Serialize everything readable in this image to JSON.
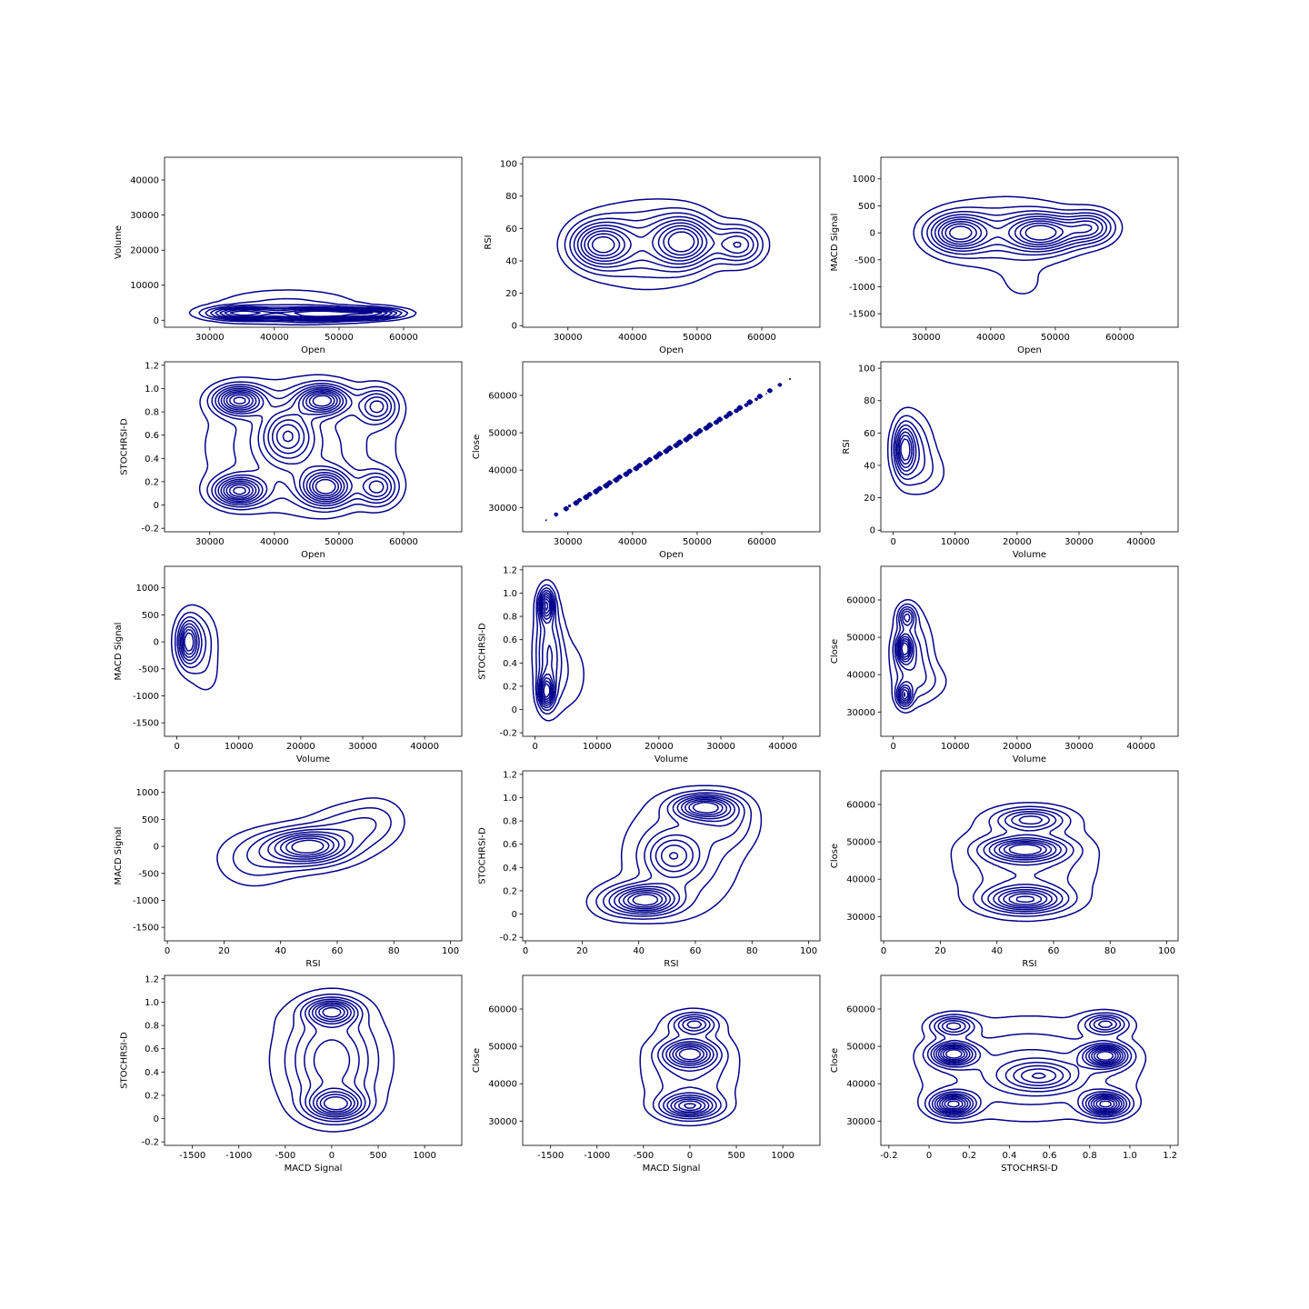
{
  "figure": {
    "line_color": "#00008b",
    "background": "#ffffff"
  },
  "chart_data": [
    {
      "type": "contour",
      "xlabel": "Open",
      "ylabel": "Volume",
      "xlim": [
        23000,
        69000
      ],
      "ylim": [
        -2000,
        46500
      ],
      "xticks": [
        30000,
        40000,
        50000,
        60000
      ],
      "yticks": [
        0,
        10000,
        20000,
        30000,
        40000
      ],
      "density_centers": [
        {
          "x": 34500,
          "y": 2000,
          "weight": 0.9,
          "spread": [
            3500,
            1200
          ]
        },
        {
          "x": 47500,
          "y": 1800,
          "weight": 1.0,
          "spread": [
            5500,
            1200
          ]
        },
        {
          "x": 56000,
          "y": 2000,
          "weight": 0.6,
          "spread": [
            3000,
            1000
          ]
        },
        {
          "x": 42000,
          "y": 4000,
          "weight": 0.3,
          "spread": [
            8000,
            3500
          ]
        }
      ],
      "levels": 8
    },
    {
      "type": "contour",
      "xlabel": "Open",
      "ylabel": "RSI",
      "xlim": [
        23000,
        69000
      ],
      "ylim": [
        -1,
        104
      ],
      "xticks": [
        30000,
        40000,
        50000,
        60000
      ],
      "yticks": [
        0,
        20,
        40,
        60,
        80,
        100
      ],
      "density_centers": [
        {
          "x": 35000,
          "y": 50,
          "weight": 1.0,
          "spread": [
            3000,
            9
          ]
        },
        {
          "x": 48000,
          "y": 52,
          "weight": 1.0,
          "spread": [
            3000,
            10
          ]
        },
        {
          "x": 56500,
          "y": 50,
          "weight": 0.7,
          "spread": [
            2500,
            8
          ]
        },
        {
          "x": 42000,
          "y": 50,
          "weight": 0.45,
          "spread": [
            6000,
            17
          ]
        }
      ],
      "levels": 9
    },
    {
      "type": "contour",
      "xlabel": "Open",
      "ylabel": "MACD Signal",
      "xlim": [
        23000,
        69000
      ],
      "ylim": [
        -1750,
        1400
      ],
      "xticks": [
        30000,
        40000,
        50000,
        60000
      ],
      "yticks": [
        -1500,
        -1000,
        -500,
        0,
        500,
        1000
      ],
      "density_centers": [
        {
          "x": 35000,
          "y": 0,
          "weight": 1.0,
          "spread": [
            3000,
            220
          ]
        },
        {
          "x": 48000,
          "y": 0,
          "weight": 1.0,
          "spread": [
            3500,
            220
          ]
        },
        {
          "x": 55500,
          "y": 100,
          "weight": 0.7,
          "spread": [
            2500,
            200
          ]
        },
        {
          "x": 42000,
          "y": 0,
          "weight": 0.35,
          "spread": [
            7000,
            450
          ]
        },
        {
          "x": 45000,
          "y": -1000,
          "weight": 0.12,
          "spread": [
            3000,
            250
          ]
        }
      ],
      "levels": 9
    },
    {
      "type": "contour",
      "xlabel": "Open",
      "ylabel": "STOCHRSI-D",
      "xlim": [
        23000,
        69000
      ],
      "ylim": [
        -0.23,
        1.23
      ],
      "xticks": [
        30000,
        40000,
        50000,
        60000
      ],
      "yticks": [
        -0.2,
        0,
        0.2,
        0.4,
        0.6,
        0.8,
        1.0,
        1.2
      ],
      "density_centers": [
        {
          "x": 34500,
          "y": 0.9,
          "weight": 1.0,
          "spread": [
            2500,
            0.08
          ]
        },
        {
          "x": 47500,
          "y": 0.9,
          "weight": 1.0,
          "spread": [
            2500,
            0.08
          ]
        },
        {
          "x": 34500,
          "y": 0.12,
          "weight": 1.0,
          "spread": [
            2500,
            0.08
          ]
        },
        {
          "x": 48000,
          "y": 0.15,
          "weight": 1.0,
          "spread": [
            2500,
            0.1
          ]
        },
        {
          "x": 42000,
          "y": 0.6,
          "weight": 0.6,
          "spread": [
            2500,
            0.15
          ]
        },
        {
          "x": 56000,
          "y": 0.85,
          "weight": 0.6,
          "spread": [
            2000,
            0.1
          ]
        },
        {
          "x": 56000,
          "y": 0.15,
          "weight": 0.6,
          "spread": [
            2000,
            0.1
          ]
        },
        {
          "x": 44000,
          "y": 0.5,
          "weight": 0.4,
          "spread": [
            9000,
            0.35
          ]
        }
      ],
      "levels": 10
    },
    {
      "type": "contour",
      "xlabel": "Open",
      "ylabel": "Close",
      "xlim": [
        23000,
        69000
      ],
      "ylim": [
        23500,
        69000
      ],
      "xticks": [
        30000,
        40000,
        50000,
        60000
      ],
      "yticks": [
        30000,
        40000,
        50000,
        60000
      ],
      "density_centers": [
        {
          "x": 35000,
          "y": 35000,
          "weight": 1.0,
          "spread": [
            4000,
            4000
          ]
        },
        {
          "x": 47000,
          "y": 47000,
          "weight": 1.0,
          "spread": [
            4500,
            4500
          ]
        },
        {
          "x": 57000,
          "y": 57000,
          "weight": 0.6,
          "spread": [
            4000,
            4000
          ]
        }
      ],
      "correlation": 0.9995,
      "levels": 8
    },
    {
      "type": "contour",
      "xlabel": "Volume",
      "ylabel": "RSI",
      "xlim": [
        -2000,
        46000
      ],
      "ylim": [
        -1,
        104
      ],
      "xticks": [
        0,
        10000,
        20000,
        30000,
        40000
      ],
      "yticks": [
        0,
        20,
        40,
        60,
        80,
        100
      ],
      "density_centers": [
        {
          "x": 1800,
          "y": 50,
          "weight": 1.0,
          "spread": [
            1000,
            10
          ]
        },
        {
          "x": 3000,
          "y": 50,
          "weight": 0.6,
          "spread": [
            2200,
            15
          ]
        },
        {
          "x": 6000,
          "y": 35,
          "weight": 0.2,
          "spread": [
            2500,
            10
          ]
        }
      ],
      "levels": 8
    },
    {
      "type": "contour",
      "xlabel": "Volume",
      "ylabel": "MACD Signal",
      "xlim": [
        -2000,
        46000
      ],
      "ylim": [
        -1750,
        1400
      ],
      "xticks": [
        0,
        10000,
        20000,
        30000,
        40000
      ],
      "yticks": [
        -1500,
        -1000,
        -500,
        0,
        500,
        1000
      ],
      "density_centers": [
        {
          "x": 1800,
          "y": 0,
          "weight": 1.0,
          "spread": [
            1000,
            260
          ]
        },
        {
          "x": 3000,
          "y": 0,
          "weight": 0.6,
          "spread": [
            2200,
            400
          ]
        },
        {
          "x": 5000,
          "y": -700,
          "weight": 0.15,
          "spread": [
            1800,
            300
          ]
        }
      ],
      "levels": 8
    },
    {
      "type": "contour",
      "xlabel": "Volume",
      "ylabel": "STOCHRSI-D",
      "xlim": [
        -2000,
        46000
      ],
      "ylim": [
        -0.23,
        1.23
      ],
      "xticks": [
        0,
        10000,
        20000,
        30000,
        40000
      ],
      "yticks": [
        -0.2,
        0,
        0.2,
        0.4,
        0.6,
        0.8,
        1.0,
        1.2
      ],
      "density_centers": [
        {
          "x": 1800,
          "y": 0.9,
          "weight": 1.0,
          "spread": [
            800,
            0.09
          ]
        },
        {
          "x": 1800,
          "y": 0.15,
          "weight": 1.0,
          "spread": [
            800,
            0.09
          ]
        },
        {
          "x": 2200,
          "y": 0.5,
          "weight": 0.6,
          "spread": [
            1500,
            0.3
          ]
        },
        {
          "x": 5500,
          "y": 0.3,
          "weight": 0.2,
          "spread": [
            2500,
            0.25
          ]
        }
      ],
      "levels": 9
    },
    {
      "type": "contour",
      "xlabel": "Volume",
      "ylabel": "Close",
      "xlim": [
        -2000,
        46000
      ],
      "ylim": [
        23500,
        69000
      ],
      "xticks": [
        0,
        10000,
        20000,
        30000,
        40000
      ],
      "yticks": [
        30000,
        40000,
        50000,
        60000
      ],
      "density_centers": [
        {
          "x": 1800,
          "y": 47000,
          "weight": 1.0,
          "spread": [
            800,
            2500
          ]
        },
        {
          "x": 1800,
          "y": 34500,
          "weight": 0.9,
          "spread": [
            800,
            2000
          ]
        },
        {
          "x": 2200,
          "y": 55500,
          "weight": 0.7,
          "spread": [
            900,
            2000
          ]
        },
        {
          "x": 3000,
          "y": 45000,
          "weight": 0.5,
          "spread": [
            2200,
            8000
          ]
        },
        {
          "x": 6000,
          "y": 38000,
          "weight": 0.2,
          "spread": [
            2500,
            3500
          ]
        }
      ],
      "levels": 9
    },
    {
      "type": "contour",
      "xlabel": "RSI",
      "ylabel": "MACD Signal",
      "xlim": [
        -1,
        104
      ],
      "ylim": [
        -1750,
        1400
      ],
      "xticks": [
        0,
        20,
        40,
        60,
        80,
        100
      ],
      "yticks": [
        -1500,
        -1000,
        -500,
        0,
        500,
        1000
      ],
      "density_centers": [
        {
          "x": 50,
          "y": 0,
          "weight": 1.0,
          "spread": [
            8,
            180
          ]
        },
        {
          "x": 45,
          "y": -50,
          "weight": 0.6,
          "spread": [
            14,
            280
          ]
        },
        {
          "x": 65,
          "y": 350,
          "weight": 0.4,
          "spread": [
            10,
            300
          ]
        },
        {
          "x": 30,
          "y": -400,
          "weight": 0.25,
          "spread": [
            9,
            300
          ]
        },
        {
          "x": 75,
          "y": 550,
          "weight": 0.2,
          "spread": [
            7,
            300
          ]
        }
      ],
      "levels": 9
    },
    {
      "type": "contour",
      "xlabel": "RSI",
      "ylabel": "STOCHRSI-D",
      "xlim": [
        -1,
        104
      ],
      "ylim": [
        -0.23,
        1.23
      ],
      "xticks": [
        0,
        20,
        40,
        60,
        80,
        100
      ],
      "yticks": [
        -0.2,
        0,
        0.2,
        0.4,
        0.6,
        0.8,
        1.0,
        1.2
      ],
      "density_centers": [
        {
          "x": 63,
          "y": 0.92,
          "weight": 1.0,
          "spread": [
            7,
            0.07
          ]
        },
        {
          "x": 43,
          "y": 0.12,
          "weight": 1.0,
          "spread": [
            7,
            0.08
          ]
        },
        {
          "x": 52,
          "y": 0.5,
          "weight": 0.5,
          "spread": [
            6,
            0.12
          ]
        },
        {
          "x": 55,
          "y": 0.5,
          "weight": 0.35,
          "spread": [
            14,
            0.35
          ]
        },
        {
          "x": 32,
          "y": 0.1,
          "weight": 0.3,
          "spread": [
            7,
            0.1
          ]
        },
        {
          "x": 72,
          "y": 0.8,
          "weight": 0.3,
          "spread": [
            7,
            0.15
          ]
        }
      ],
      "levels": 9
    },
    {
      "type": "contour",
      "xlabel": "RSI",
      "ylabel": "Close",
      "xlim": [
        -1,
        104
      ],
      "ylim": [
        23500,
        69000
      ],
      "xticks": [
        0,
        20,
        40,
        60,
        80,
        100
      ],
      "yticks": [
        30000,
        40000,
        50000,
        60000
      ],
      "density_centers": [
        {
          "x": 50,
          "y": 48000,
          "weight": 1.0,
          "spread": [
            9,
            2000
          ]
        },
        {
          "x": 50,
          "y": 34500,
          "weight": 1.0,
          "spread": [
            9,
            2200
          ]
        },
        {
          "x": 52,
          "y": 56000,
          "weight": 0.7,
          "spread": [
            8,
            2000
          ]
        },
        {
          "x": 50,
          "y": 44000,
          "weight": 0.4,
          "spread": [
            17,
            9000
          ]
        }
      ],
      "levels": 9
    },
    {
      "type": "contour",
      "xlabel": "MACD Signal",
      "ylabel": "STOCHRSI-D",
      "xlim": [
        -1800,
        1400
      ],
      "ylim": [
        -0.23,
        1.23
      ],
      "xticks": [
        -1500,
        -1000,
        -500,
        0,
        500,
        1000
      ],
      "yticks": [
        -0.2,
        0,
        0.2,
        0.4,
        0.6,
        0.8,
        1.0,
        1.2
      ],
      "density_centers": [
        {
          "x": 0,
          "y": 0.92,
          "weight": 1.0,
          "spread": [
            180,
            0.07
          ]
        },
        {
          "x": 50,
          "y": 0.12,
          "weight": 1.0,
          "spread": [
            200,
            0.08
          ]
        },
        {
          "x": 0,
          "y": 0.5,
          "weight": 0.55,
          "spread": [
            300,
            0.28
          ]
        },
        {
          "x": 0,
          "y": 0.5,
          "weight": 0.2,
          "spread": [
            500,
            0.4
          ]
        },
        {
          "x": -900,
          "y": 0.9,
          "weight": 0.05,
          "spread": [
            300,
            0.1
          ]
        }
      ],
      "levels": 9
    },
    {
      "type": "contour",
      "xlabel": "MACD Signal",
      "ylabel": "Close",
      "xlim": [
        -1800,
        1400
      ],
      "ylim": [
        23500,
        69000
      ],
      "xticks": [
        -1500,
        -1000,
        -500,
        0,
        500,
        1000
      ],
      "yticks": [
        30000,
        40000,
        50000,
        60000
      ],
      "density_centers": [
        {
          "x": 0,
          "y": 48000,
          "weight": 1.0,
          "spread": [
            180,
            2200
          ]
        },
        {
          "x": 0,
          "y": 34000,
          "weight": 1.0,
          "spread": [
            200,
            2000
          ]
        },
        {
          "x": 50,
          "y": 56000,
          "weight": 0.7,
          "spread": [
            150,
            1800
          ]
        },
        {
          "x": 0,
          "y": 44000,
          "weight": 0.4,
          "spread": [
            350,
            9000
          ]
        },
        {
          "x": -1000,
          "y": 50000,
          "weight": 0.05,
          "spread": [
            250,
            1000
          ]
        }
      ],
      "levels": 9
    },
    {
      "type": "contour",
      "xlabel": "STOCHRSI-D",
      "ylabel": "Close",
      "xlim": [
        -0.24,
        1.24
      ],
      "ylim": [
        23500,
        69000
      ],
      "xticks": [
        -0.2,
        0,
        0.2,
        0.4,
        0.6,
        0.8,
        1.0,
        1.2
      ],
      "yticks": [
        30000,
        40000,
        50000,
        60000
      ],
      "density_centers": [
        {
          "x": 0.12,
          "y": 48000,
          "weight": 1.0,
          "spread": [
            0.07,
            2000
          ]
        },
        {
          "x": 0.88,
          "y": 47500,
          "weight": 1.0,
          "spread": [
            0.07,
            2000
          ]
        },
        {
          "x": 0.12,
          "y": 34500,
          "weight": 1.0,
          "spread": [
            0.07,
            2000
          ]
        },
        {
          "x": 0.88,
          "y": 34500,
          "weight": 1.0,
          "spread": [
            0.07,
            2000
          ]
        },
        {
          "x": 0.12,
          "y": 55500,
          "weight": 0.6,
          "spread": [
            0.07,
            1800
          ]
        },
        {
          "x": 0.88,
          "y": 56000,
          "weight": 0.6,
          "spread": [
            0.07,
            1800
          ]
        },
        {
          "x": 0.55,
          "y": 42000,
          "weight": 0.5,
          "spread": [
            0.12,
            2500
          ]
        },
        {
          "x": 0.5,
          "y": 44000,
          "weight": 0.35,
          "spread": [
            0.35,
            9000
          ]
        }
      ],
      "levels": 10
    }
  ]
}
